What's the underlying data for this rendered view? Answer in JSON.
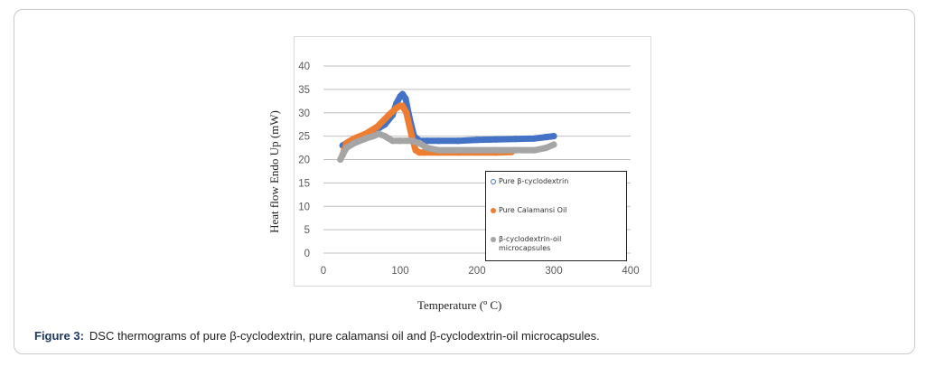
{
  "caption": {
    "label": "Figure 3:",
    "text": "DSC thermograms of pure β-cyclodextrin, pure calamansi oil and β-cyclodextrin-oil microcapsules."
  },
  "chart_data": {
    "type": "line",
    "xlabel": "Temperature (º C)",
    "ylabel": "Heat flow Endo Up (mW)",
    "xlim": [
      0,
      400
    ],
    "ylim": [
      0,
      40
    ],
    "xticks": [
      "0",
      "100",
      "200",
      "300",
      "400"
    ],
    "yticks": [
      "0",
      "5",
      "10",
      "15",
      "20",
      "25",
      "30",
      "35",
      "40"
    ],
    "grid": "horizontal",
    "legend_position": "bottom-right",
    "series": [
      {
        "name": "Pure β-cyclodextrin",
        "color": "#4472c4",
        "marker": "hollow-circle",
        "x": [
          25,
          35,
          50,
          65,
          80,
          90,
          95,
          100,
          103,
          107,
          112,
          118,
          125,
          135,
          150,
          175,
          200,
          225,
          250,
          275,
          290,
          300
        ],
        "y": [
          23,
          24,
          25,
          26,
          27.5,
          29.5,
          32,
          33.5,
          34,
          33,
          29,
          25,
          24,
          24,
          24,
          24,
          24.2,
          24.3,
          24.4,
          24.5,
          24.8,
          25
        ]
      },
      {
        "name": "Pure Calamansi Oil",
        "color": "#ed7d31",
        "marker": "filled-circle",
        "x": [
          25,
          30,
          40,
          55,
          70,
          85,
          95,
          100,
          103,
          108,
          115,
          120,
          125,
          130,
          150,
          175,
          200,
          225,
          245
        ],
        "y": [
          21,
          23.5,
          24.5,
          25.5,
          27,
          29.5,
          31,
          31.5,
          31.5,
          30,
          25,
          22,
          21.5,
          21.5,
          21.5,
          21.5,
          21.5,
          21.5,
          21.6
        ]
      },
      {
        "name": "β-cyclodextrin-oil microcapsules",
        "color": "#a5a5a5",
        "marker": "filled-circle",
        "x": [
          22,
          25,
          30,
          40,
          55,
          65,
          72,
          80,
          90,
          100,
          115,
          125,
          135,
          150,
          175,
          200,
          225,
          250,
          275,
          290,
          300
        ],
        "y": [
          20,
          21,
          22.5,
          23.5,
          24.5,
          25,
          25.5,
          25,
          24,
          24,
          24,
          23.5,
          22.5,
          22,
          22,
          22,
          22,
          22,
          22,
          22.5,
          23.2
        ]
      }
    ]
  }
}
